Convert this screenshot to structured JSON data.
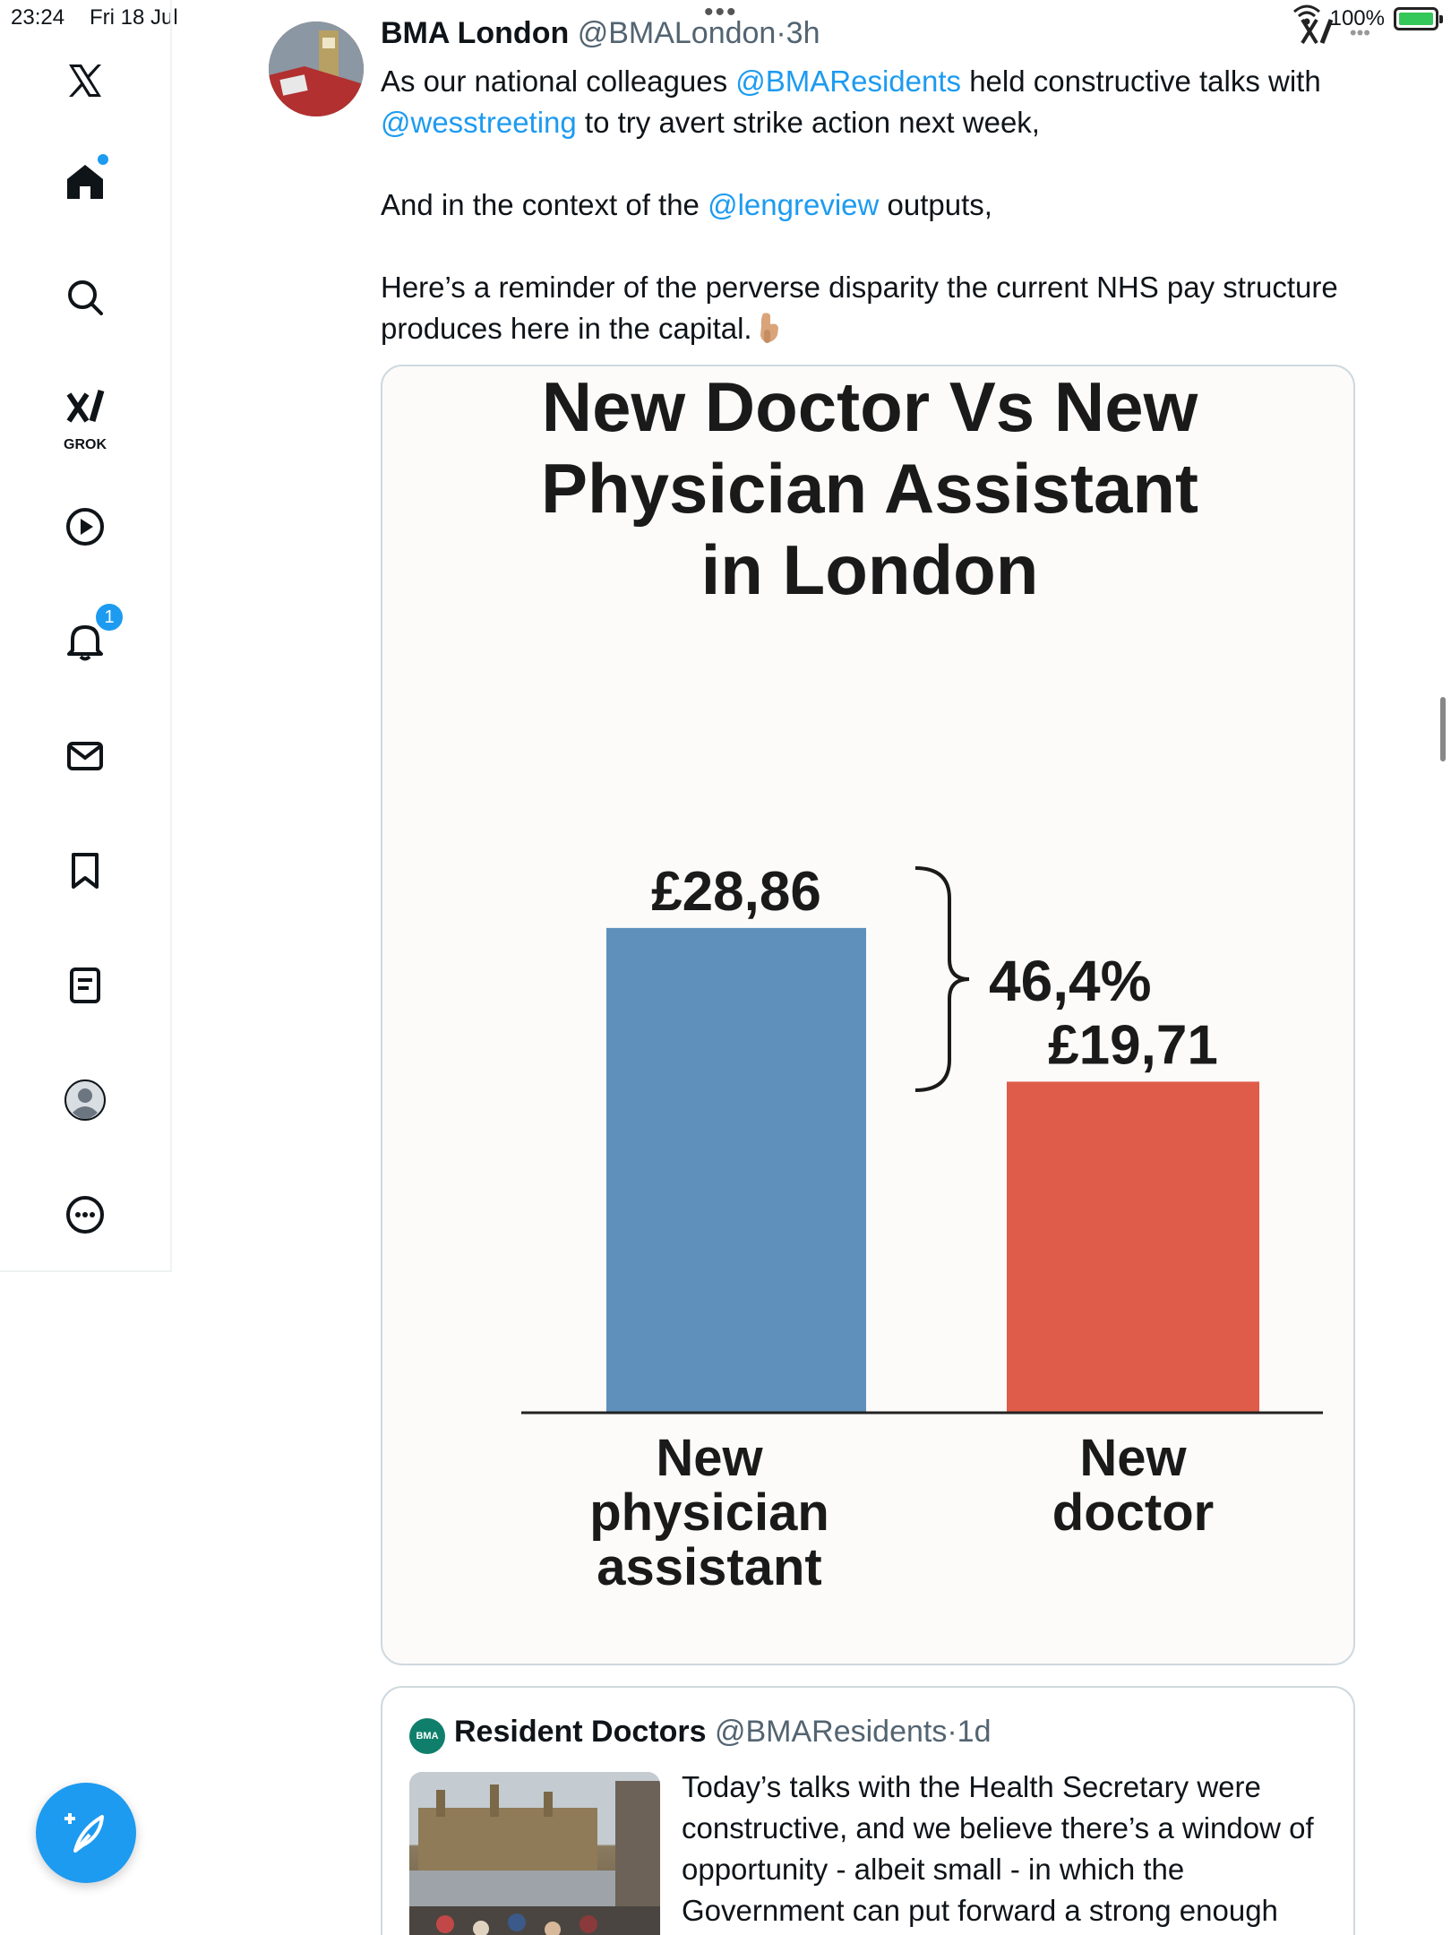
{
  "status_bar": {
    "time": "23:24",
    "date": "Fri 18 Jul",
    "battery": "100%",
    "battery_level": 1.0
  },
  "sidebar": {
    "grok_label": "GROK",
    "notifications_count": "1"
  },
  "tweet": {
    "author_name": "BMA London",
    "author_handle": "@BMALondon",
    "separator": "·",
    "time": "3h",
    "text": {
      "p1_a": "As our national colleagues ",
      "p1_mention1": "@BMAResidents",
      "p1_b": " held constructive talks with ",
      "p1_mention2": "@wesstreeting",
      "p1_c": " to try avert strike action next week,",
      "p2_a": "And in the context of the ",
      "p2_mention": "@lengreview",
      "p2_b": " outputs,",
      "p3": "Here’s a reminder of the perverse disparity the current NHS pay structure produces here in the capital."
    }
  },
  "chart_data": {
    "type": "bar",
    "title": "New Doctor Vs New\nPhysician Assistant\nin London",
    "categories": [
      "New\nphysician\nassistant",
      "New\ndoctor"
    ],
    "values": [
      28.86,
      19.71
    ],
    "value_labels": [
      "£28,86",
      "£19,71"
    ],
    "difference_label": "46,4%",
    "colors": [
      "#5f90bb",
      "#e05c4a"
    ],
    "ylim": [
      0,
      32
    ],
    "grid": false,
    "legend": "none"
  },
  "quote": {
    "author_name": "Resident Doctors",
    "author_handle": "@BMAResidents",
    "separator": "·",
    "time": "1d",
    "avatar_text": "BMA",
    "text": "Today’s talks with the Health Secretary were constructive, and we believe there’s a window of opportunity - albeit small - in which the Government can put forward a strong enough"
  },
  "colors": {
    "accent": "#1d9bf0",
    "text": "#0f1419",
    "muted": "#536471"
  }
}
